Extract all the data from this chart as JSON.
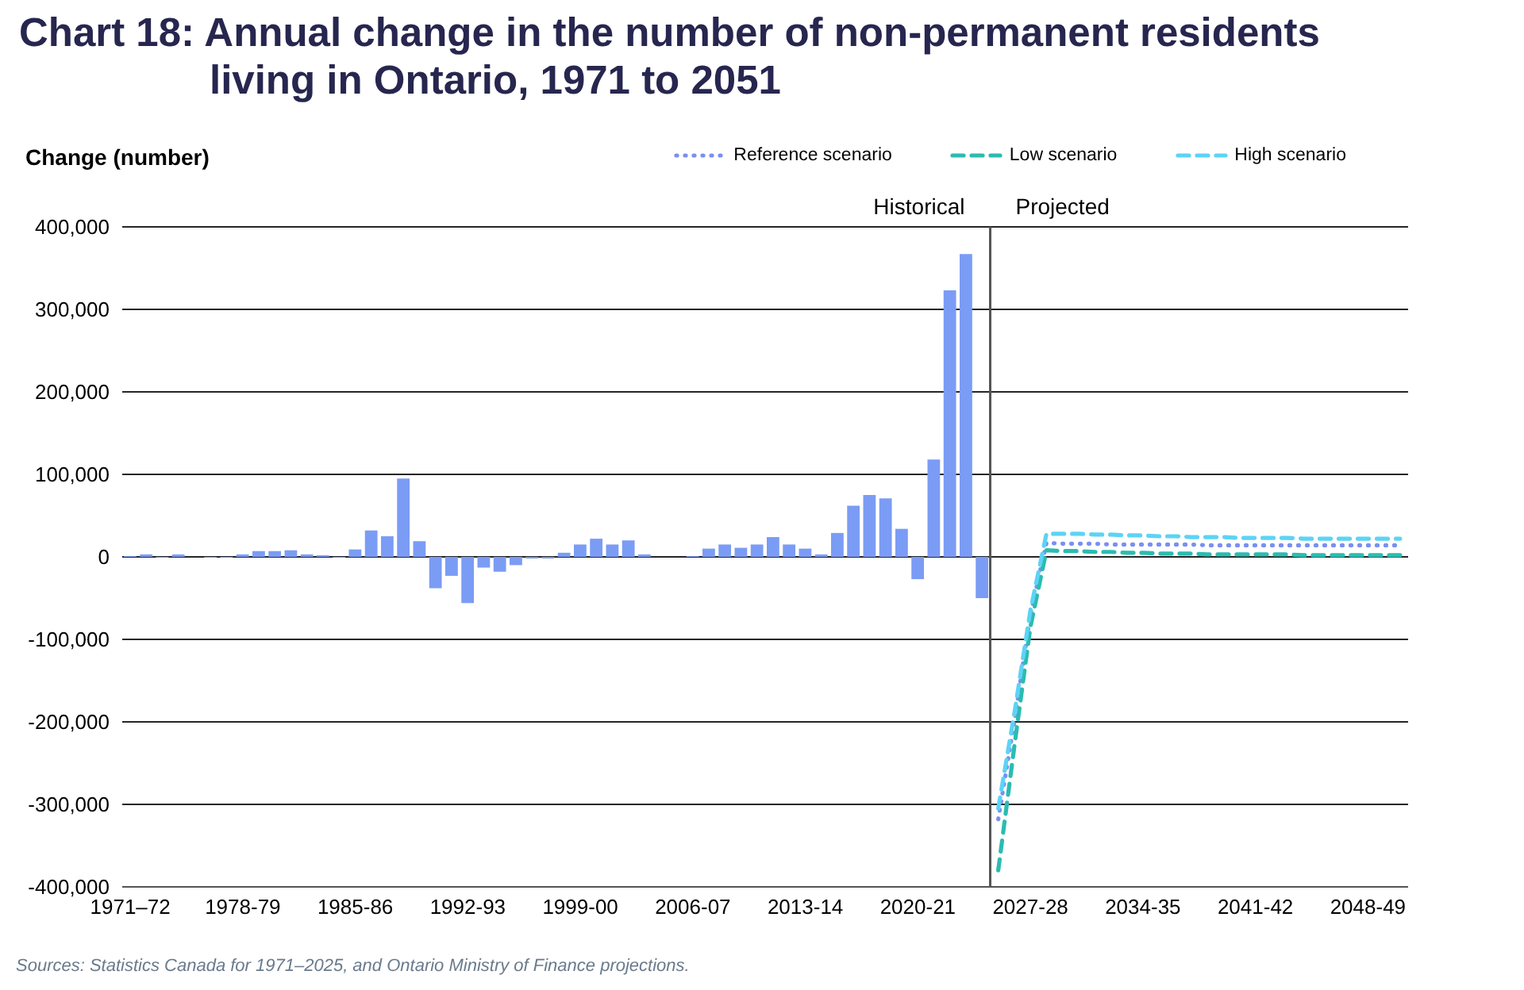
{
  "chart_data": {
    "type": "bar",
    "title": "Chart 18: Annual change in the number of non-permanent residents living in Ontario, 1971 to 2051",
    "ylabel": "Change (number)",
    "categories": [
      "1971–72",
      null,
      null,
      null,
      null,
      null,
      null,
      "1978-79",
      null,
      null,
      null,
      null,
      null,
      null,
      "1985-86",
      null,
      null,
      null,
      null,
      null,
      null,
      "1992-93",
      null,
      null,
      null,
      null,
      null,
      null,
      "1999-00",
      null,
      null,
      null,
      null,
      null,
      null,
      "2006-07",
      null,
      null,
      null,
      null,
      null,
      null,
      "2013-14",
      null,
      null,
      null,
      null,
      null,
      null,
      "2020-21",
      null,
      null,
      null,
      null,
      null,
      null,
      "2027-28",
      null,
      null,
      null,
      null,
      null,
      null,
      "2034-35",
      null,
      null,
      null,
      null,
      null,
      null,
      "2041-42",
      null,
      null,
      null,
      null,
      null,
      null,
      "2048-49",
      null,
      null
    ],
    "ylim": [
      -400000,
      400000
    ],
    "yticks": [
      {
        "value": -400000,
        "label": "-400,000"
      },
      {
        "value": -300000,
        "label": "-300,000"
      },
      {
        "value": -200000,
        "label": "-200,000"
      },
      {
        "value": -100000,
        "label": "-100,000"
      },
      0,
      {
        "value": 100000,
        "label": "100,000"
      },
      {
        "value": 200000,
        "label": "200,000"
      },
      {
        "value": 300000,
        "label": "300,000"
      },
      {
        "value": 400000,
        "label": "400,000"
      }
    ],
    "grid": "y",
    "legend": "top right",
    "series": [
      {
        "color": "#7b9cf5",
        "values": [
          1000,
          3000,
          -1000,
          3000,
          0,
          -1000,
          -1000,
          3000,
          7000,
          7000,
          8000,
          3000,
          2000,
          -1000,
          9000,
          32000,
          25000,
          95000,
          19000,
          -38000,
          -23000,
          -56000,
          -13000,
          -18000,
          -10000,
          -2000,
          -2000,
          5000,
          15000,
          22000,
          15000,
          20000,
          3000,
          0,
          0,
          1000,
          10000,
          15000,
          11000,
          15000,
          24000,
          15000,
          10000,
          3000,
          29000,
          62000,
          75000,
          71000,
          34000,
          -27000,
          118000,
          323000,
          367000,
          -50000,
          null,
          null,
          null,
          null,
          null,
          null,
          null,
          null,
          null,
          null,
          null,
          null,
          null,
          null,
          null,
          null,
          null,
          null,
          null,
          null,
          null,
          null,
          null,
          null,
          null,
          null
        ]
      },
      {
        "type": "line",
        "name": "Reference scenario",
        "color": "#7b8ff0",
        "line_style": "dotted",
        "values": [
          null,
          null,
          null,
          null,
          null,
          null,
          null,
          null,
          null,
          null,
          null,
          null,
          null,
          null,
          null,
          null,
          null,
          null,
          null,
          null,
          null,
          null,
          null,
          null,
          null,
          null,
          null,
          null,
          null,
          null,
          null,
          null,
          null,
          null,
          null,
          null,
          null,
          null,
          null,
          null,
          null,
          null,
          null,
          null,
          null,
          null,
          null,
          null,
          null,
          null,
          null,
          null,
          null,
          null,
          -318000,
          -200000,
          -70000,
          17000,
          16000,
          16000,
          16000,
          15000,
          15000,
          15000,
          15000,
          15000,
          15000,
          14000,
          14000,
          14000,
          14000,
          14000,
          14000,
          14000,
          14000,
          14000,
          14000,
          14000,
          14000,
          14000
        ]
      },
      {
        "type": "line",
        "name": "Low scenario",
        "color": "#2bbcb0",
        "line_style": "dashed",
        "values": [
          null,
          null,
          null,
          null,
          null,
          null,
          null,
          null,
          null,
          null,
          null,
          null,
          null,
          null,
          null,
          null,
          null,
          null,
          null,
          null,
          null,
          null,
          null,
          null,
          null,
          null,
          null,
          null,
          null,
          null,
          null,
          null,
          null,
          null,
          null,
          null,
          null,
          null,
          null,
          null,
          null,
          null,
          null,
          null,
          null,
          null,
          null,
          null,
          null,
          null,
          null,
          null,
          null,
          null,
          -380000,
          -230000,
          -85000,
          8000,
          7000,
          7000,
          6000,
          6000,
          5000,
          5000,
          4000,
          4000,
          4000,
          3000,
          3000,
          3000,
          3000,
          3000,
          3000,
          2000,
          2000,
          2000,
          2000,
          2000,
          2000,
          2000
        ]
      },
      {
        "type": "line",
        "name": "High scenario",
        "color": "#5dd3f5",
        "line_style": "dashed",
        "values": [
          null,
          null,
          null,
          null,
          null,
          null,
          null,
          null,
          null,
          null,
          null,
          null,
          null,
          null,
          null,
          null,
          null,
          null,
          null,
          null,
          null,
          null,
          null,
          null,
          null,
          null,
          null,
          null,
          null,
          null,
          null,
          null,
          null,
          null,
          null,
          null,
          null,
          null,
          null,
          null,
          null,
          null,
          null,
          null,
          null,
          null,
          null,
          null,
          null,
          null,
          null,
          null,
          null,
          null,
          -305000,
          -190000,
          -65000,
          28000,
          28000,
          28000,
          27000,
          27000,
          26000,
          26000,
          25000,
          25000,
          24000,
          24000,
          24000,
          23000,
          23000,
          23000,
          23000,
          22000,
          22000,
          22000,
          22000,
          22000,
          22000,
          22000
        ]
      }
    ],
    "annotations": [
      "Historical",
      "Projected",
      "Sources: Statistics Canada for 1971–2025, and Ontario Ministry of Finance projections."
    ]
  }
}
